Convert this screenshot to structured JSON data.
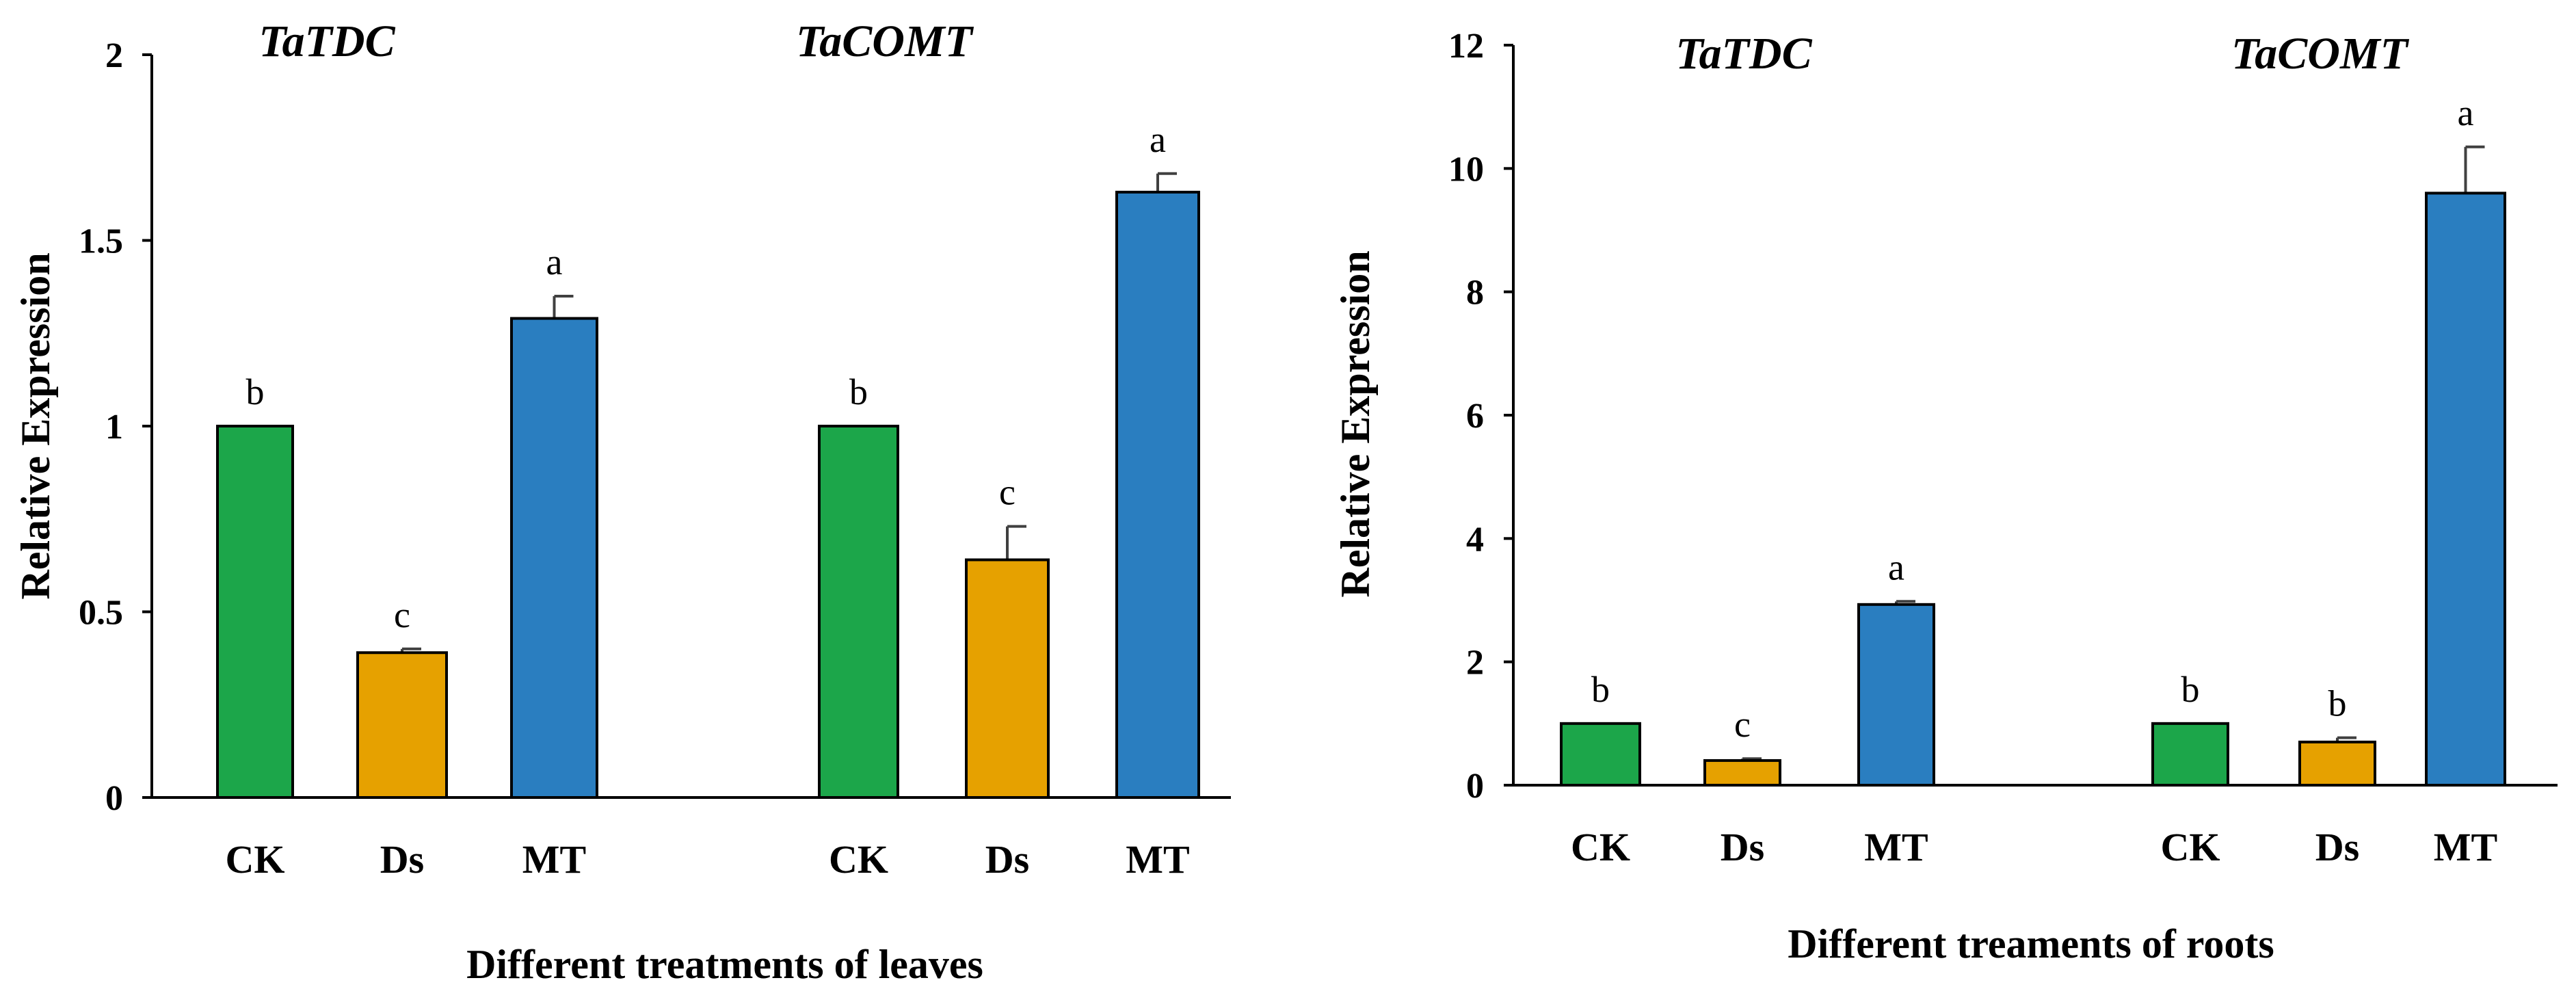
{
  "colors": {
    "CK": "#1ca64a",
    "Ds": "#e6a100",
    "MT": "#2a7ec0",
    "axis": "#000000",
    "error_bar": "#404040"
  },
  "chart_data": [
    {
      "type": "bar",
      "panel": "leaves",
      "xlabel": "Different treatments of leaves",
      "ylabel": "Relative Expression",
      "ylim": [
        0,
        2
      ],
      "yticks": [
        "0",
        "0.5",
        "1",
        "1.5",
        "2"
      ],
      "ytick_values": [
        0,
        0.5,
        1,
        1.5,
        2
      ],
      "grid": false,
      "groups": [
        {
          "gene": "TaTDC",
          "bars": [
            {
              "category": "CK",
              "value": 1.0,
              "error": 0.0,
              "letter": "b"
            },
            {
              "category": "Ds",
              "value": 0.39,
              "error": 0.01,
              "letter": "c"
            },
            {
              "category": "MT",
              "value": 1.29,
              "error": 0.06,
              "letter": "a"
            }
          ]
        },
        {
          "gene": "TaCOMT",
          "bars": [
            {
              "category": "CK",
              "value": 1.0,
              "error": 0.0,
              "letter": "b"
            },
            {
              "category": "Ds",
              "value": 0.64,
              "error": 0.09,
              "letter": "c"
            },
            {
              "category": "MT",
              "value": 1.63,
              "error": 0.05,
              "letter": "a"
            }
          ]
        }
      ]
    },
    {
      "type": "bar",
      "panel": "roots",
      "xlabel": "Different treaments of roots",
      "ylabel": "Relative Expression",
      "ylim": [
        0,
        12
      ],
      "yticks": [
        "0",
        "2",
        "4",
        "6",
        "8",
        "10",
        "12"
      ],
      "ytick_values": [
        0,
        2,
        4,
        6,
        8,
        10,
        12
      ],
      "grid": false,
      "groups": [
        {
          "gene": "TaTDC",
          "bars": [
            {
              "category": "CK",
              "value": 1.0,
              "error": 0.0,
              "letter": "b"
            },
            {
              "category": "Ds",
              "value": 0.4,
              "error": 0.03,
              "letter": "c"
            },
            {
              "category": "MT",
              "value": 2.93,
              "error": 0.05,
              "letter": "a"
            }
          ]
        },
        {
          "gene": "TaCOMT",
          "bars": [
            {
              "category": "CK",
              "value": 1.0,
              "error": 0.0,
              "letter": "b"
            },
            {
              "category": "Ds",
              "value": 0.7,
              "error": 0.07,
              "letter": "b"
            },
            {
              "category": "MT",
              "value": 9.6,
              "error": 0.75,
              "letter": "a"
            }
          ]
        }
      ]
    }
  ]
}
